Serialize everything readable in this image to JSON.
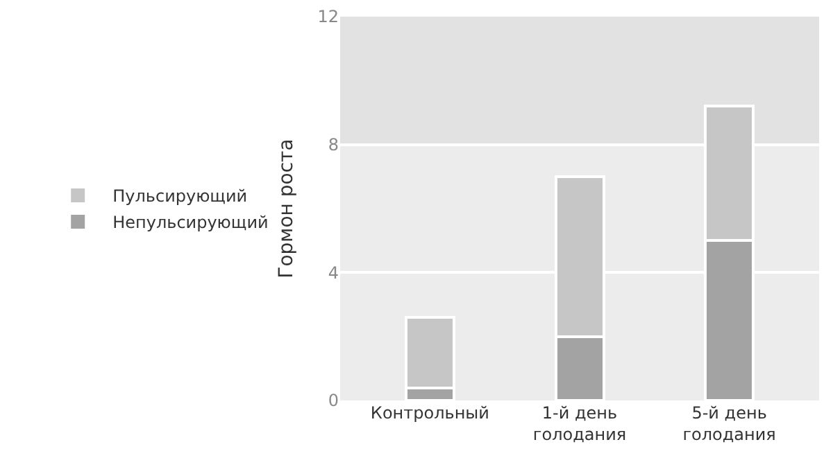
{
  "chart_data": {
    "type": "bar",
    "stacked": true,
    "ylabel": "Гормон роста",
    "categories": [
      "Контрольный",
      "1-й день\nголодания",
      "5-й день\nголодания"
    ],
    "series": [
      {
        "name": "Непульсирующий",
        "color": "#a3a3a3",
        "values": [
          0.4,
          2.0,
          5.0
        ]
      },
      {
        "name": "Пульсирующий",
        "color": "#c6c6c6",
        "values": [
          2.2,
          5.0,
          4.2
        ]
      }
    ],
    "ylim": [
      0,
      12
    ],
    "yticks": [
      0,
      4,
      8,
      12
    ],
    "grid": "y",
    "legend": "left",
    "bands": [
      {
        "axis": "y",
        "from": 8,
        "to": 12,
        "color": "#e2e2e2"
      }
    ]
  }
}
